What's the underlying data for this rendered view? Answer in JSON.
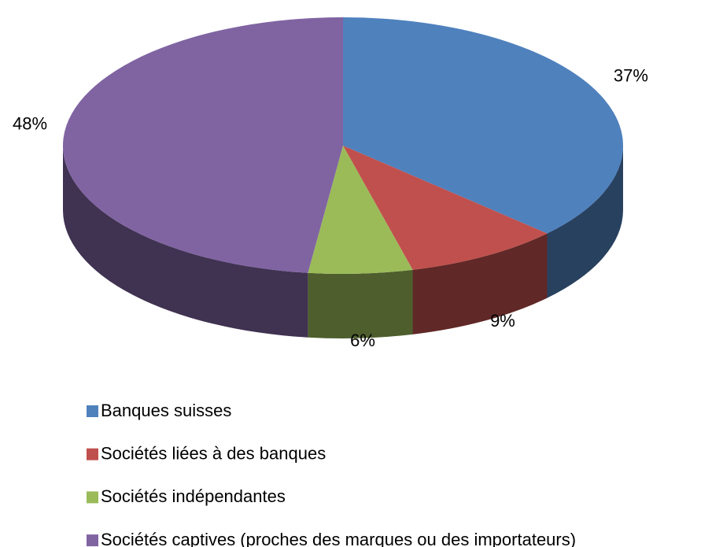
{
  "chart_data": {
    "type": "pie",
    "categories": [
      "Banques suisses",
      "Sociétés liées à des banques",
      "Sociétés indépendantes",
      "Sociétés captives (proches des marques ou des importateurs)"
    ],
    "values": [
      37,
      9,
      6,
      48
    ],
    "value_labels": [
      "37%",
      "9%",
      "6%",
      "48%"
    ],
    "colors": [
      "#4f81bd",
      "#c0504d",
      "#9bbb59",
      "#8064a2"
    ],
    "legend": "bottom"
  }
}
